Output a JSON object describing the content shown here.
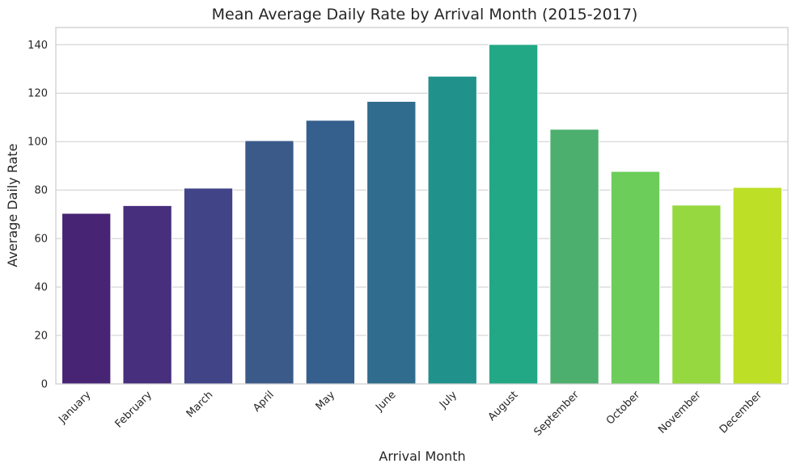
{
  "chart_data": {
    "type": "bar",
    "title": "Mean Average Daily Rate by Arrival Month (2015-2017)",
    "xlabel": "Arrival Month",
    "ylabel": "Average Daily Rate",
    "categories": [
      "January",
      "February",
      "March",
      "April",
      "May",
      "June",
      "July",
      "August",
      "September",
      "October",
      "November",
      "December"
    ],
    "values": [
      70.4,
      73.6,
      80.8,
      100.4,
      108.8,
      116.6,
      127.0,
      140.1,
      105.1,
      87.7,
      73.8,
      81.1
    ],
    "colors": [
      "#482475",
      "#472f7d",
      "#414487",
      "#3b5a89",
      "#355f8d",
      "#2f6c8e",
      "#21918c",
      "#22a884",
      "#4caf6e",
      "#6ccd5a",
      "#95d840",
      "#bddf26"
    ],
    "ylim": [
      0,
      147.1
    ],
    "yticks": [
      0,
      20,
      40,
      60,
      80,
      100,
      120,
      140
    ],
    "grid": "horizontal",
    "legend": "none"
  }
}
